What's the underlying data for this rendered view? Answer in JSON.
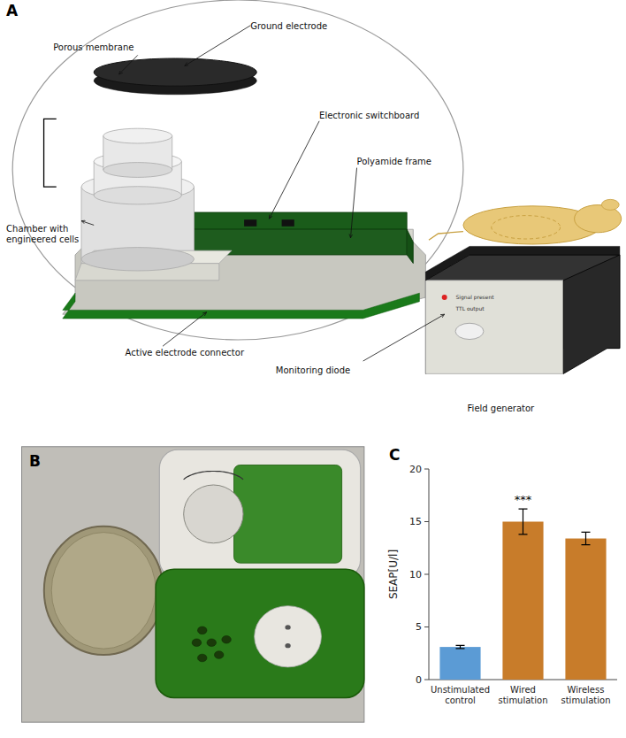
{
  "chart_data": [
    {
      "type": "diagram",
      "title": "A",
      "annotations": [
        "Ground electrode",
        "Porous membrane",
        "Electronic switchboard",
        "Polyamide frame",
        "Chamber with\nengineered cells",
        "Active electrode connector",
        "Monitoring diode",
        "Field generator",
        "Signal present",
        "TTL output"
      ]
    },
    {
      "type": "photo",
      "title": "B"
    },
    {
      "type": "bar",
      "title": "C",
      "categories": [
        "Unstimulated\ncontrol",
        "Wired\nstimulation",
        "Wireless\nstimulation"
      ],
      "values": [
        3.1,
        15.0,
        13.4
      ],
      "errors": [
        0.15,
        1.2,
        0.6
      ],
      "colors": [
        "#5b9bd5",
        "#c87c2a",
        "#c87c2a"
      ],
      "ylabel": "SEAP[U/l]",
      "ylim": [
        0,
        20
      ],
      "yticks": [
        0,
        5,
        10,
        15,
        20
      ],
      "annotations": [
        {
          "text": "***",
          "category": "Wired\nstimulation"
        }
      ]
    }
  ]
}
